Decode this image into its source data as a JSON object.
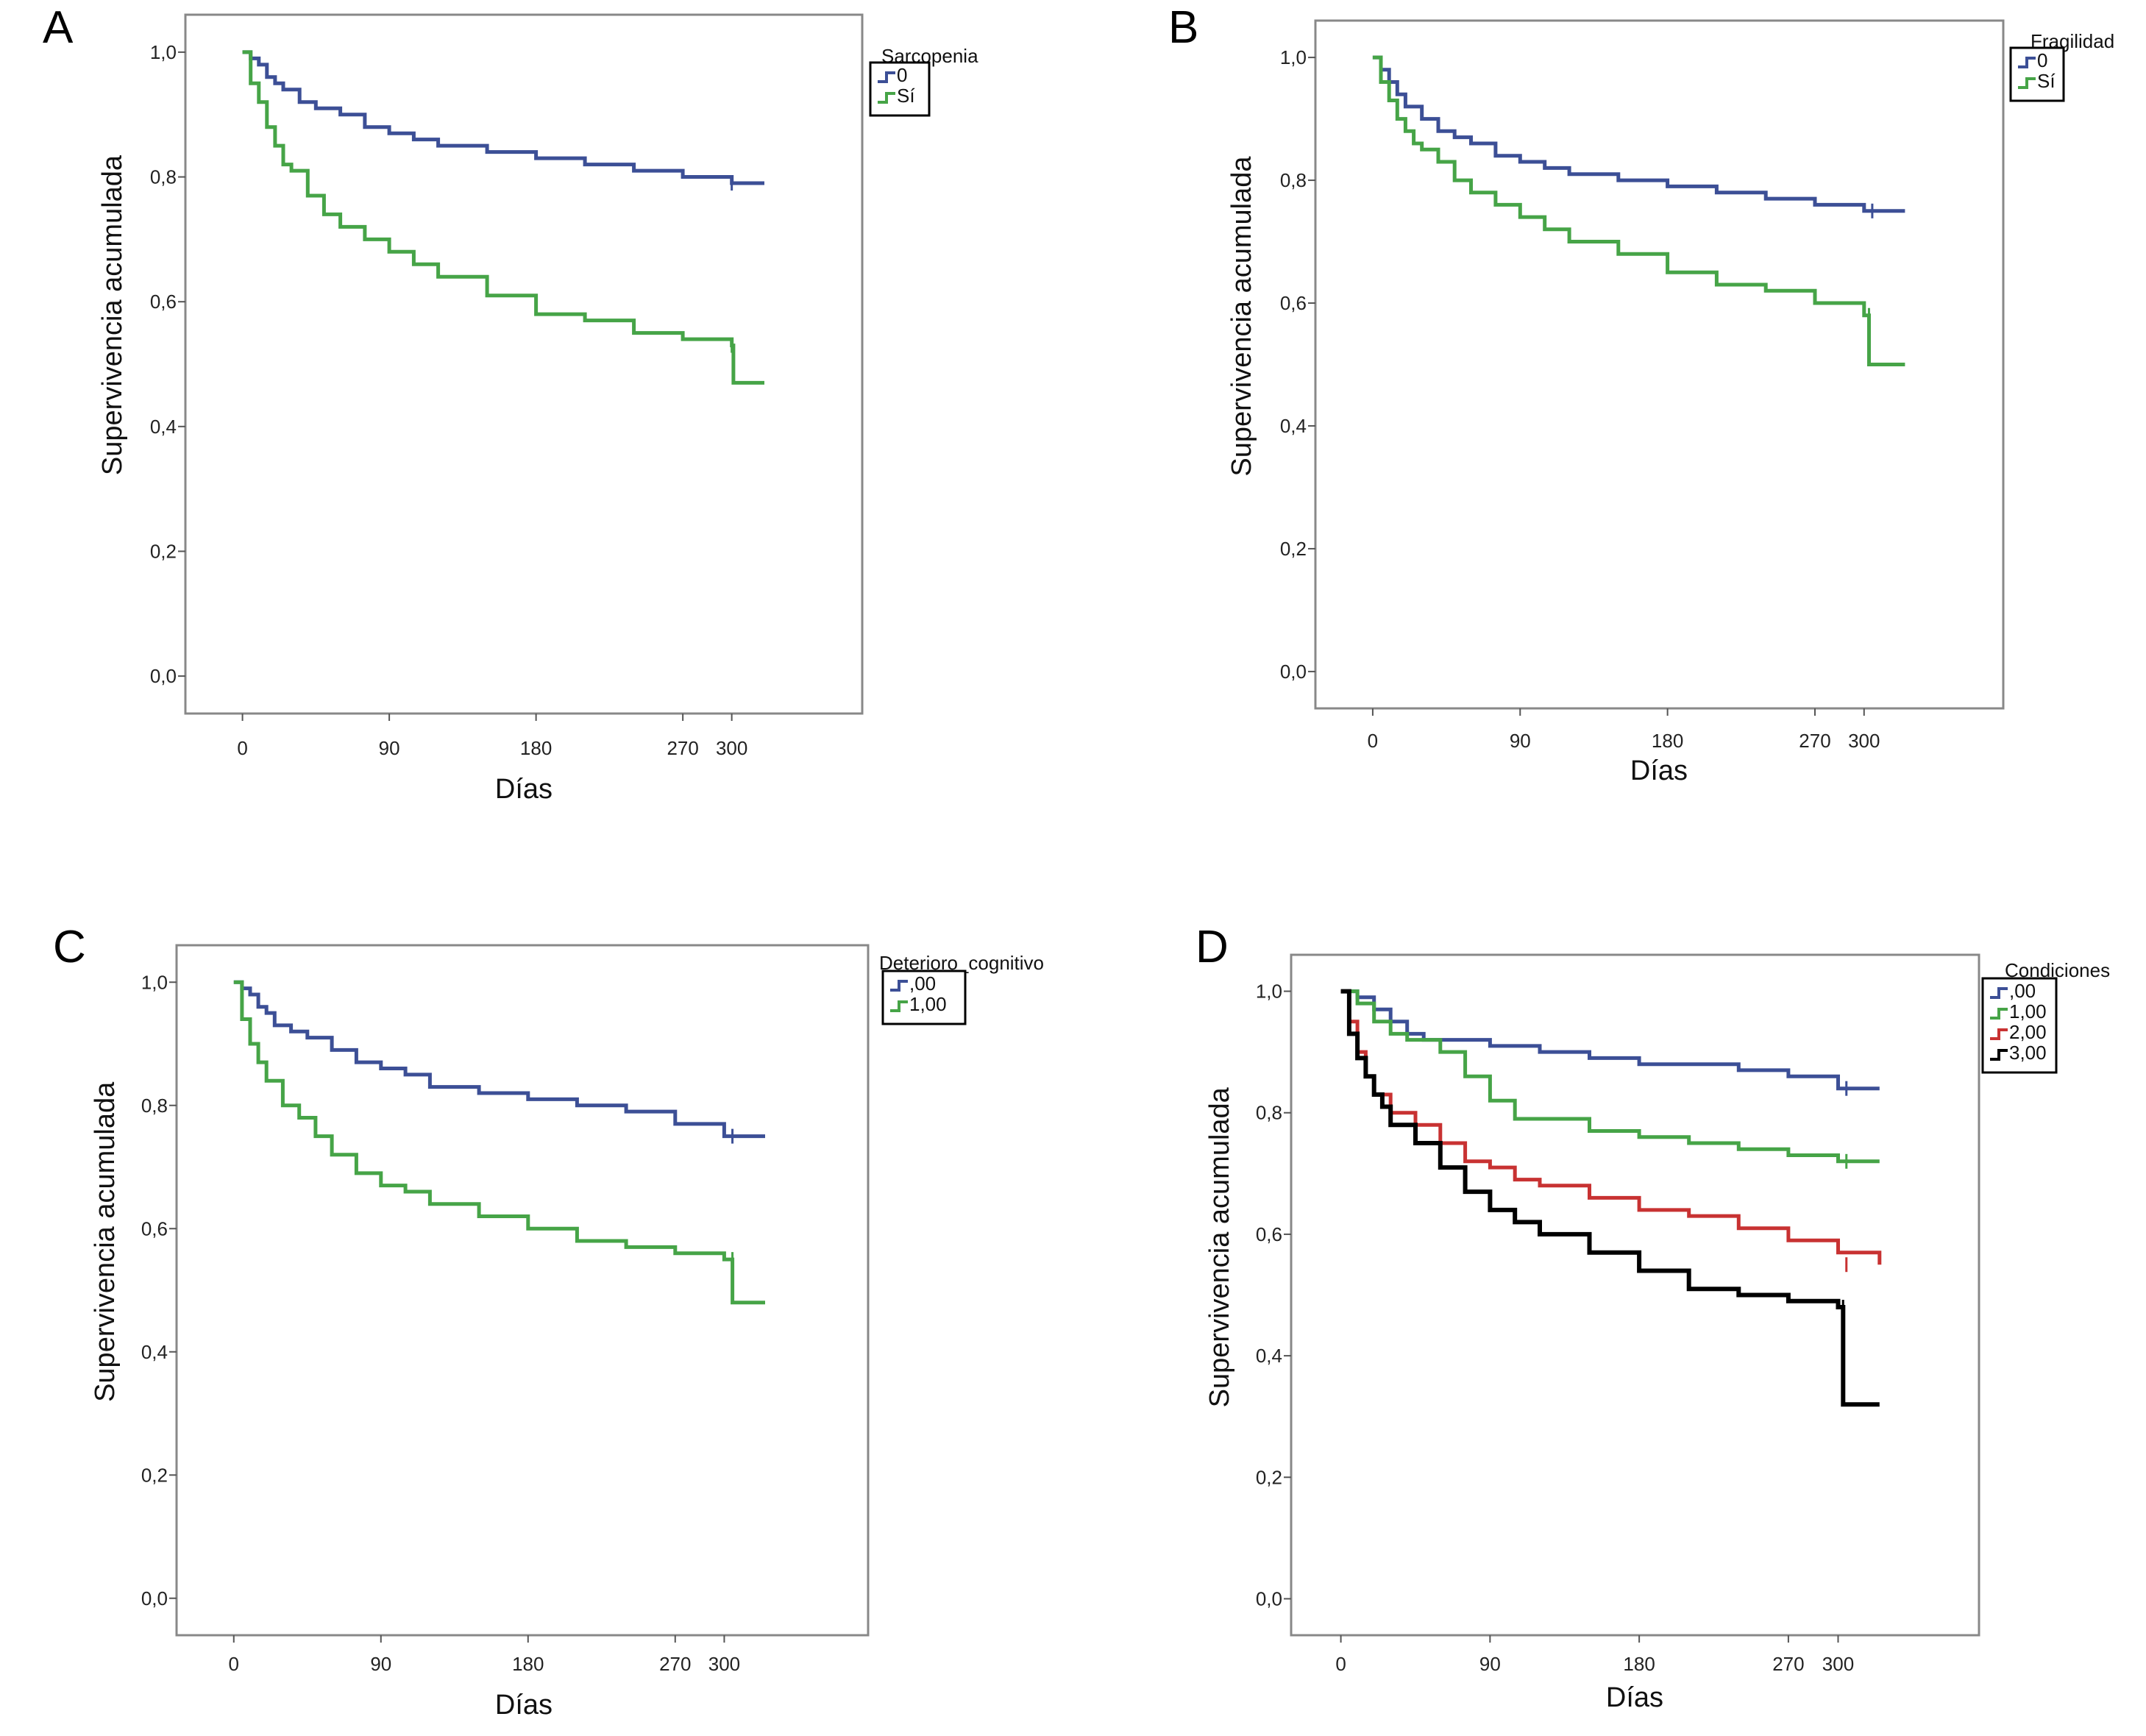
{
  "figure": {
    "panels": [
      {
        "letter": "A",
        "legend_title": "Sarcopenia"
      },
      {
        "letter": "B",
        "legend_title": "Fragilidad"
      },
      {
        "letter": "C",
        "legend_title": "Deterioro_cognitivo"
      },
      {
        "letter": "D",
        "legend_title": "Condiciones"
      }
    ]
  },
  "colors": {
    "blue": "#3c4f96",
    "green": "#46a447",
    "red": "#c83232",
    "black": "#000000"
  },
  "chart_data": [
    {
      "type": "line",
      "step": true,
      "xlabel": "Días",
      "ylabel": "Supervivencia acumulada",
      "xticks": [
        0,
        90,
        180,
        270,
        300
      ],
      "yticks": [
        "0,0",
        "0,2",
        "0,4",
        "0,6",
        "0,8",
        "1,0"
      ],
      "xlim": [
        -35,
        380
      ],
      "ylim": [
        -0.06,
        1.06
      ],
      "legend": {
        "title": "Sarcopenia",
        "position": "top-right"
      },
      "series": [
        {
          "name": "0",
          "color": "blue",
          "x": [
            0,
            5,
            10,
            15,
            20,
            25,
            35,
            45,
            60,
            75,
            90,
            105,
            120,
            150,
            180,
            210,
            240,
            270,
            300,
            320
          ],
          "y": [
            1.0,
            0.99,
            0.98,
            0.96,
            0.95,
            0.94,
            0.92,
            0.91,
            0.9,
            0.88,
            0.87,
            0.86,
            0.85,
            0.84,
            0.83,
            0.82,
            0.81,
            0.8,
            0.79,
            0.79
          ],
          "censored": [
            [
              300,
              0.79
            ]
          ]
        },
        {
          "name": "Sí",
          "color": "green",
          "x": [
            0,
            5,
            10,
            15,
            20,
            25,
            30,
            40,
            50,
            60,
            75,
            90,
            105,
            120,
            150,
            180,
            210,
            240,
            270,
            300,
            301,
            320
          ],
          "y": [
            1.0,
            0.95,
            0.92,
            0.88,
            0.85,
            0.82,
            0.81,
            0.77,
            0.74,
            0.72,
            0.7,
            0.68,
            0.66,
            0.64,
            0.61,
            0.58,
            0.57,
            0.55,
            0.54,
            0.53,
            0.47,
            0.47
          ],
          "censored": [
            [
              300,
              0.53
            ]
          ]
        }
      ]
    },
    {
      "type": "line",
      "step": true,
      "xlabel": "Días",
      "ylabel": "Supervivencia acumulada",
      "xticks": [
        0,
        90,
        180,
        270,
        300
      ],
      "yticks": [
        "0,0",
        "0,2",
        "0,4",
        "0,6",
        "0,8",
        "1,0"
      ],
      "xlim": [
        -35,
        385
      ],
      "ylim": [
        -0.06,
        1.06
      ],
      "legend": {
        "title": "Fragilidad",
        "position": "top-right"
      },
      "series": [
        {
          "name": "0",
          "color": "blue",
          "x": [
            0,
            5,
            10,
            15,
            20,
            30,
            40,
            50,
            60,
            75,
            90,
            105,
            120,
            150,
            180,
            210,
            240,
            270,
            300,
            325
          ],
          "y": [
            1.0,
            0.98,
            0.96,
            0.94,
            0.92,
            0.9,
            0.88,
            0.87,
            0.86,
            0.84,
            0.83,
            0.82,
            0.81,
            0.8,
            0.79,
            0.78,
            0.77,
            0.76,
            0.75,
            0.75
          ],
          "censored": [
            [
              305,
              0.75
            ]
          ]
        },
        {
          "name": "Sí",
          "color": "green",
          "x": [
            0,
            5,
            10,
            15,
            20,
            25,
            30,
            40,
            50,
            60,
            75,
            90,
            105,
            120,
            150,
            180,
            210,
            240,
            270,
            300,
            303,
            325
          ],
          "y": [
            1.0,
            0.96,
            0.93,
            0.9,
            0.88,
            0.86,
            0.85,
            0.83,
            0.8,
            0.78,
            0.76,
            0.74,
            0.72,
            0.7,
            0.68,
            0.65,
            0.63,
            0.62,
            0.6,
            0.58,
            0.5,
            0.5
          ],
          "censored": [
            [
              303,
              0.58
            ]
          ]
        }
      ]
    },
    {
      "type": "line",
      "step": true,
      "xlabel": "Días",
      "ylabel": "Supervivencia acumulada",
      "xticks": [
        0,
        90,
        180,
        270,
        300
      ],
      "yticks": [
        "0,0",
        "0,2",
        "0,4",
        "0,6",
        "0,8",
        "1,0"
      ],
      "xlim": [
        -35,
        388
      ],
      "ylim": [
        -0.06,
        1.06
      ],
      "legend": {
        "title": "Deterioro_cognitivo",
        "position": "top-right"
      },
      "series": [
        {
          "name": ",00",
          "color": "blue",
          "x": [
            0,
            5,
            10,
            15,
            20,
            25,
            35,
            45,
            60,
            75,
            90,
            105,
            120,
            150,
            180,
            210,
            240,
            270,
            300,
            325
          ],
          "y": [
            1.0,
            0.99,
            0.98,
            0.96,
            0.95,
            0.93,
            0.92,
            0.91,
            0.89,
            0.87,
            0.86,
            0.85,
            0.83,
            0.82,
            0.81,
            0.8,
            0.79,
            0.77,
            0.75,
            0.75
          ],
          "censored": [
            [
              305,
              0.75
            ]
          ]
        },
        {
          "name": "1,00",
          "color": "green",
          "x": [
            0,
            5,
            10,
            15,
            20,
            30,
            40,
            50,
            60,
            75,
            90,
            105,
            120,
            150,
            180,
            210,
            240,
            270,
            300,
            305,
            325
          ],
          "y": [
            1.0,
            0.94,
            0.9,
            0.87,
            0.84,
            0.8,
            0.78,
            0.75,
            0.72,
            0.69,
            0.67,
            0.66,
            0.64,
            0.62,
            0.6,
            0.58,
            0.57,
            0.56,
            0.55,
            0.48,
            0.48
          ],
          "censored": [
            [
              305,
              0.55
            ]
          ]
        }
      ]
    },
    {
      "type": "line",
      "step": true,
      "xlabel": "Días",
      "ylabel": "Supervivencia acumulada",
      "xticks": [
        0,
        90,
        180,
        270,
        300
      ],
      "yticks": [
        "0,0",
        "0,2",
        "0,4",
        "0,6",
        "0,8",
        "1,0"
      ],
      "xlim": [
        -30,
        385
      ],
      "ylim": [
        -0.06,
        1.06
      ],
      "legend": {
        "title": "Condiciones",
        "position": "top-right"
      },
      "series": [
        {
          "name": ",00",
          "color": "blue",
          "x": [
            0,
            10,
            20,
            30,
            40,
            50,
            90,
            120,
            150,
            180,
            240,
            270,
            300,
            325
          ],
          "y": [
            1.0,
            0.99,
            0.97,
            0.95,
            0.93,
            0.92,
            0.91,
            0.9,
            0.89,
            0.88,
            0.87,
            0.86,
            0.84,
            0.84
          ],
          "censored": [
            [
              305,
              0.84
            ]
          ]
        },
        {
          "name": "1,00",
          "color": "green",
          "x": [
            0,
            10,
            20,
            30,
            40,
            60,
            75,
            90,
            105,
            150,
            180,
            210,
            240,
            270,
            300,
            325
          ],
          "y": [
            1.0,
            0.98,
            0.95,
            0.93,
            0.92,
            0.9,
            0.86,
            0.82,
            0.79,
            0.77,
            0.76,
            0.75,
            0.74,
            0.73,
            0.72,
            0.72
          ],
          "censored": [
            [
              305,
              0.72
            ]
          ]
        },
        {
          "name": "2,00",
          "color": "red",
          "x": [
            0,
            5,
            10,
            15,
            20,
            30,
            45,
            60,
            75,
            90,
            105,
            120,
            150,
            180,
            210,
            240,
            270,
            300,
            325
          ],
          "y": [
            1.0,
            0.95,
            0.9,
            0.86,
            0.83,
            0.8,
            0.78,
            0.75,
            0.72,
            0.71,
            0.69,
            0.68,
            0.66,
            0.64,
            0.63,
            0.61,
            0.59,
            0.57,
            0.55
          ],
          "censored": [
            [
              305,
              0.55
            ]
          ]
        },
        {
          "name": "3,00",
          "color": "black",
          "x": [
            0,
            5,
            10,
            15,
            20,
            25,
            30,
            45,
            60,
            75,
            90,
            105,
            120,
            150,
            180,
            210,
            240,
            270,
            300,
            303,
            325
          ],
          "y": [
            1.0,
            0.93,
            0.89,
            0.86,
            0.83,
            0.81,
            0.78,
            0.75,
            0.71,
            0.67,
            0.64,
            0.62,
            0.6,
            0.57,
            0.54,
            0.51,
            0.5,
            0.49,
            0.48,
            0.32,
            0.32
          ],
          "censored": [
            [
              303,
              0.48
            ]
          ]
        }
      ]
    }
  ]
}
